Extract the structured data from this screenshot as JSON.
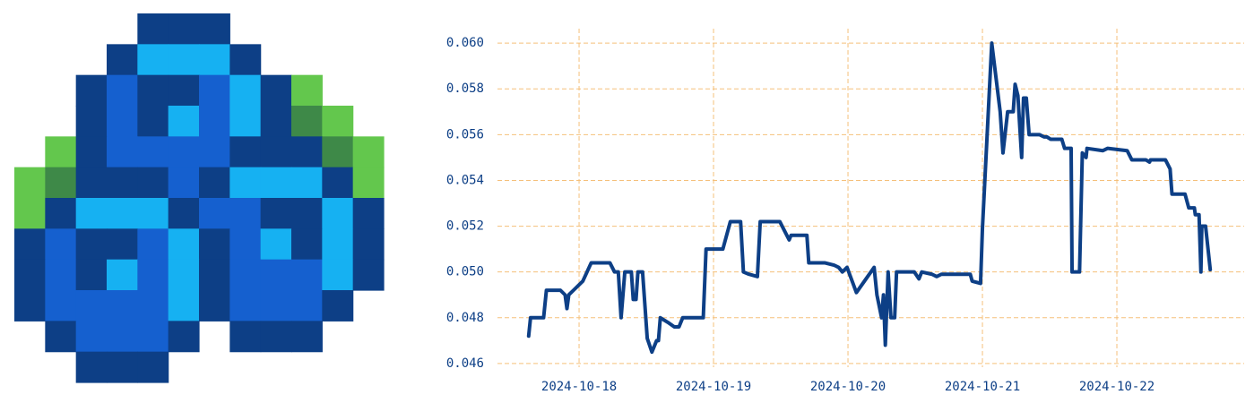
{
  "chart_data": {
    "type": "line",
    "x": [
      "2024-10-17 15:00",
      "2024-10-17 15:20",
      "2024-10-17 17:40",
      "2024-10-17 18:10",
      "2024-10-17 20:40",
      "2024-10-17 21:30",
      "2024-10-17 21:50",
      "2024-10-17 22:10",
      "2024-10-17 23:00",
      "2024-10-18 00:40",
      "2024-10-18 02:10",
      "2024-10-18 05:30",
      "2024-10-18 06:20",
      "2024-10-18 07:00",
      "2024-10-18 07:30",
      "2024-10-18 08:10",
      "2024-10-18 09:20",
      "2024-10-18 09:40",
      "2024-10-18 10:10",
      "2024-10-18 10:30",
      "2024-10-18 11:20",
      "2024-10-18 12:10",
      "2024-10-18 13:00",
      "2024-10-18 13:50",
      "2024-10-18 14:10",
      "2024-10-18 14:30",
      "2024-10-18 15:50",
      "2024-10-18 17:00",
      "2024-10-18 17:50",
      "2024-10-18 18:30",
      "2024-10-18 22:10",
      "2024-10-18 22:40",
      "2024-10-19 01:40",
      "2024-10-19 03:00",
      "2024-10-19 04:50",
      "2024-10-19 05:20",
      "2024-10-19 06:20",
      "2024-10-19 07:50",
      "2024-10-19 08:20",
      "2024-10-19 11:50",
      "2024-10-19 12:40",
      "2024-10-19 13:30",
      "2024-10-19 13:50",
      "2024-10-19 14:40",
      "2024-10-19 16:40",
      "2024-10-19 17:00",
      "2024-10-19 19:50",
      "2024-10-19 21:30",
      "2024-10-19 22:20",
      "2024-10-19 23:00",
      "2024-10-19 23:50",
      "2024-10-20 01:30",
      "2024-10-20 04:40",
      "2024-10-20 05:10",
      "2024-10-20 06:00",
      "2024-10-20 06:20",
      "2024-10-20 06:40",
      "2024-10-20 07:10",
      "2024-10-20 07:40",
      "2024-10-20 08:20",
      "2024-10-20 08:40",
      "2024-10-20 11:50",
      "2024-10-20 12:40",
      "2024-10-20 13:10",
      "2024-10-20 15:00",
      "2024-10-20 15:50",
      "2024-10-20 16:40",
      "2024-10-20 18:10",
      "2024-10-20 21:50",
      "2024-10-20 22:10",
      "2024-10-20 23:40",
      "2024-10-21 00:00",
      "2024-10-21 01:40",
      "2024-10-21 03:10",
      "2024-10-21 03:40",
      "2024-10-21 04:30",
      "2024-10-21 05:30",
      "2024-10-21 05:50",
      "2024-10-21 06:20",
      "2024-10-21 07:00",
      "2024-10-21 07:20",
      "2024-10-21 07:50",
      "2024-10-21 08:20",
      "2024-10-21 10:10",
      "2024-10-21 11:00",
      "2024-10-21 11:30",
      "2024-10-21 12:10",
      "2024-10-21 14:10",
      "2024-10-21 14:40",
      "2024-10-21 15:50",
      "2024-10-21 16:00",
      "2024-10-21 17:20",
      "2024-10-21 17:50",
      "2024-10-21 18:30",
      "2024-10-21 18:40",
      "2024-10-21 21:30",
      "2024-10-21 22:20",
      "2024-10-22 01:50",
      "2024-10-22 02:40",
      "2024-10-22 05:10",
      "2024-10-22 05:50",
      "2024-10-22 06:00",
      "2024-10-22 08:40",
      "2024-10-22 09:30",
      "2024-10-22 09:50",
      "2024-10-22 12:10",
      "2024-10-22 12:50",
      "2024-10-22 13:50",
      "2024-10-22 14:00",
      "2024-10-22 14:40",
      "2024-10-22 15:00",
      "2024-10-22 15:10",
      "2024-10-22 15:50",
      "2024-10-22 16:40"
    ],
    "color": "#0d3f86",
    "values": [
      0.0472,
      0.048,
      0.048,
      0.0492,
      0.0492,
      0.049,
      0.0484,
      0.049,
      0.0492,
      0.0496,
      0.0504,
      0.0504,
      0.05,
      0.05,
      0.048,
      0.05,
      0.05,
      0.0488,
      0.0488,
      0.05,
      0.05,
      0.0471,
      0.0465,
      0.047,
      0.047,
      0.048,
      0.0478,
      0.0476,
      0.0476,
      0.048,
      0.048,
      0.051,
      0.051,
      0.0522,
      0.0522,
      0.05,
      0.0499,
      0.0498,
      0.0522,
      0.0522,
      0.0518,
      0.0514,
      0.0516,
      0.0516,
      0.0516,
      0.0504,
      0.0504,
      0.0503,
      0.0502,
      0.05,
      0.0502,
      0.0491,
      0.0502,
      0.049,
      0.048,
      0.049,
      0.0468,
      0.05,
      0.048,
      0.048,
      0.05,
      0.05,
      0.0497,
      0.05,
      0.0499,
      0.0498,
      0.0499,
      0.0499,
      0.0499,
      0.0496,
      0.0495,
      0.0519,
      0.06,
      0.057,
      0.0552,
      0.057,
      0.057,
      0.0582,
      0.0577,
      0.055,
      0.0576,
      0.0576,
      0.056,
      0.056,
      0.0559,
      0.0559,
      0.0558,
      0.0558,
      0.0554,
      0.0554,
      0.05,
      0.05,
      0.0552,
      0.055,
      0.0554,
      0.0553,
      0.0554,
      0.0553,
      0.0549,
      0.0549,
      0.0548,
      0.0549,
      0.0549,
      0.0545,
      0.0534,
      0.0534,
      0.0528,
      0.0528,
      0.0525,
      0.0525,
      0.05,
      0.052,
      0.052,
      0.0501
    ],
    "xlim": [
      "2024-10-17 09:26",
      "2024-10-22 22:43"
    ],
    "xticks": [
      "2024-10-18",
      "2024-10-19",
      "2024-10-20",
      "2024-10-21",
      "2024-10-22"
    ],
    "ylim": [
      0.04584,
      0.06063
    ],
    "yticks": [
      0.046,
      0.048,
      {
        "value": 0.05,
        "label": "0.050"
      },
      0.052,
      0.054,
      0.056,
      0.058,
      {
        "value": 0.06,
        "label": "0.060"
      }
    ],
    "grid": true
  }
}
